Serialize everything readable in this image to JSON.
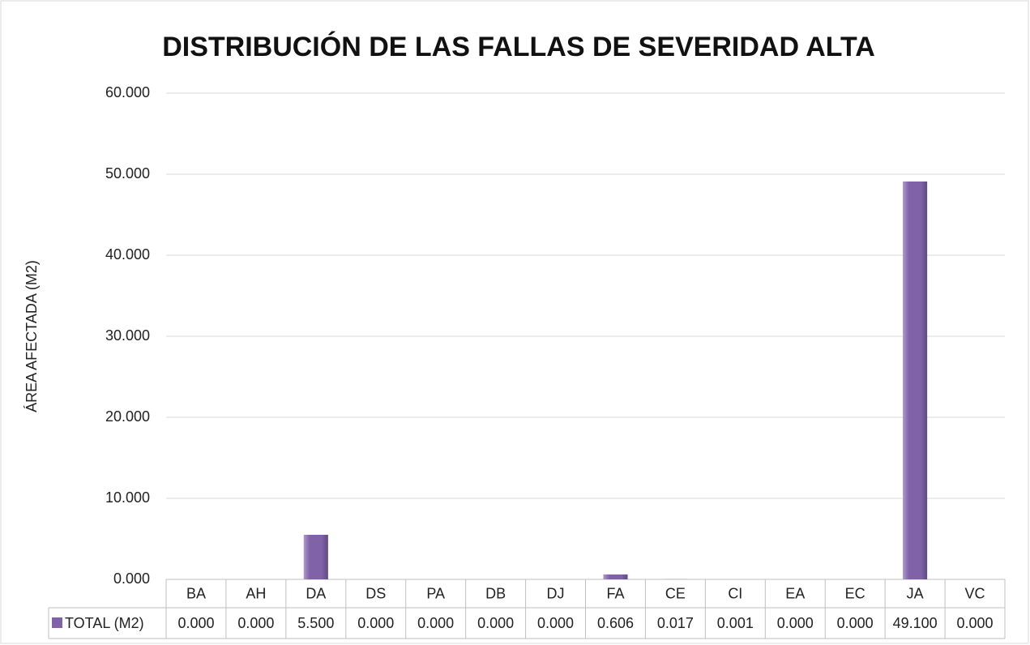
{
  "chart_data": {
    "type": "bar",
    "title": "DISTRIBUCIÓN DE LAS FALLAS DE SEVERIDAD ALTA",
    "y_label": "ÁREA AFECTADA (M2)",
    "categories": [
      "BA",
      "AH",
      "DA",
      "DS",
      "PA",
      "DB",
      "DJ",
      "FA",
      "CE",
      "CI",
      "EA",
      "EC",
      "JA",
      "VC"
    ],
    "series": [
      {
        "name": "TOTAL (M2)",
        "color": "#7f62a8",
        "values": [
          0,
          0,
          5.5,
          0,
          0,
          0,
          0,
          0.606,
          0.017,
          0.001,
          0,
          0,
          49.1,
          0
        ],
        "value_labels": [
          "0.000",
          "0.000",
          "5.500",
          "0.000",
          "0.000",
          "0.000",
          "0.000",
          "0.606",
          "0.017",
          "0.001",
          "0.000",
          "0.000",
          "49.100",
          "0.000"
        ]
      }
    ],
    "ylim": [
      0,
      60
    ],
    "yticks": [
      {
        "value": 0,
        "label": "0.000"
      },
      {
        "value": 10,
        "label": "10.000"
      },
      {
        "value": 20,
        "label": "20.000"
      },
      {
        "value": 30,
        "label": "30.000"
      },
      {
        "value": 40,
        "label": "40.000"
      },
      {
        "value": 50,
        "label": "50.000"
      },
      {
        "value": 60,
        "label": "60.000"
      }
    ],
    "grid": true
  }
}
